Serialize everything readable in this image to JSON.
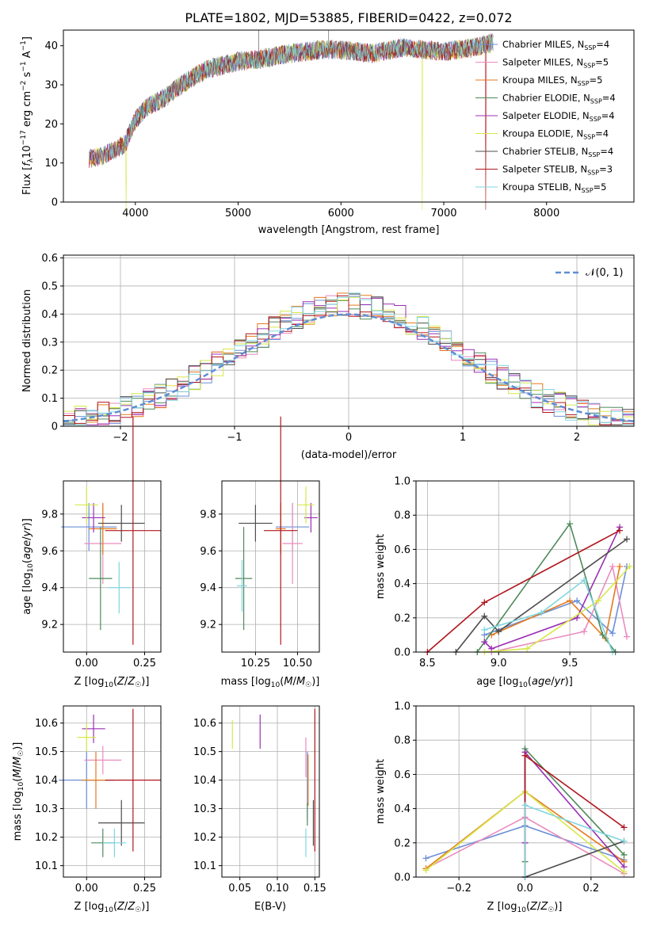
{
  "title": "PLATE=1802, MJD=53885, FIBERID=0422, z=0.072",
  "colors": [
    "#6b8fd8",
    "#e98cbf",
    "#e57a1e",
    "#4f8a5b",
    "#9b30b5",
    "#d7e84a",
    "#4d4d4d",
    "#b0171f",
    "#7fd6e0"
  ],
  "legend": [
    {
      "name": "Chabrier MILES",
      "n": "4"
    },
    {
      "name": "Salpeter MILES",
      "n": "5"
    },
    {
      "name": "Kroupa MILES",
      "n": "5"
    },
    {
      "name": "Chabrier ELODIE",
      "n": "4"
    },
    {
      "name": "Salpeter ELODIE",
      "n": "4"
    },
    {
      "name": "Kroupa ELODIE",
      "n": "4"
    },
    {
      "name": "Chabrier STELIB",
      "n": "4"
    },
    {
      "name": "Salpeter STELIB",
      "n": "3"
    },
    {
      "name": "Kroupa STELIB",
      "n": "5"
    }
  ],
  "chart_data": [
    {
      "type": "line",
      "xlabel": "wavelength [Angstrom, rest frame]",
      "ylabel": "Flux [f_λ 10^-17 erg cm^-2 s^-1 A^-1]",
      "xlim": [
        3300,
        8850
      ],
      "ylim": [
        0,
        44
      ],
      "xticks": [
        4000,
        5000,
        6000,
        7000,
        8000
      ],
      "yticks": [
        0,
        10,
        20,
        30,
        40
      ],
      "spectrum_shape": {
        "x": [
          3550,
          3700,
          3900,
          4000,
          4100,
          4300,
          4500,
          4700,
          5000,
          5200,
          5500,
          5800,
          6000,
          6300,
          6600,
          7000,
          7300,
          7500
        ],
        "y": [
          11,
          12,
          15,
          21,
          24,
          27,
          31,
          34,
          36,
          36.5,
          38,
          39,
          39,
          38,
          39.5,
          38.5,
          39.5,
          41
        ]
      },
      "grid": false
    },
    {
      "type": "histogram",
      "xlabel": "(data-model)/error",
      "ylabel": "Normed distribution",
      "xlim": [
        -2.5,
        2.5
      ],
      "ylim": [
        0,
        0.61
      ],
      "xticks": [
        -2,
        -1,
        0,
        1,
        2
      ],
      "yticks": [
        0,
        0.1,
        0.2,
        0.3,
        0.4,
        0.5,
        0.6
      ],
      "reference_label": "𝒩(0, 1)",
      "grid": true
    },
    {
      "type": "scatter",
      "xlabel": "Z [log10(Z/Z☉)]",
      "ylabel": "age [log10(age/yr)]",
      "xlim": [
        -0.1,
        0.32
      ],
      "ylim": [
        9.05,
        9.98
      ],
      "xticks": [
        0,
        0.25
      ],
      "xticklabels": [
        "0.00",
        "0.25"
      ],
      "yticks": [
        9.2,
        9.4,
        9.6,
        9.8
      ],
      "yticklabels": [
        "9.2",
        "9.4",
        "9.6",
        "9.8"
      ],
      "points": [
        {
          "x": 0.01,
          "y": 9.73,
          "xe": 0.12,
          "ye": 0.13
        },
        {
          "x": 0.07,
          "y": 9.64,
          "xe": 0.08,
          "ye": 0.22
        },
        {
          "x": 0.07,
          "y": 9.72,
          "xe": 0.06,
          "ye": 0.14
        },
        {
          "x": 0.06,
          "y": 9.45,
          "xe": 0.05,
          "ye": 0.28
        },
        {
          "x": 0.03,
          "y": 9.78,
          "xe": 0.05,
          "ye": 0.08
        },
        {
          "x": 0.0,
          "y": 9.85,
          "xe": 0.05,
          "ye": 0.1
        },
        {
          "x": 0.15,
          "y": 9.75,
          "xe": 0.1,
          "ye": 0.1
        },
        {
          "x": 0.2,
          "y": 9.71,
          "xe": 0.12,
          "ye": 0.62
        },
        {
          "x": 0.14,
          "y": 9.4,
          "xe": 0.05,
          "ye": 0.14
        }
      ]
    },
    {
      "type": "scatter",
      "xlabel": "mass [log10(M/M☉)]",
      "ylabel": "",
      "xlim": [
        10.05,
        10.63
      ],
      "ylim": [
        9.05,
        9.98
      ],
      "xticks": [
        10.25,
        10.5
      ],
      "xticklabels": [
        "10.25",
        "10.50"
      ],
      "yticks": [
        9.2,
        9.4,
        9.6,
        9.8
      ],
      "yticklabels": [
        "9.2",
        "9.4",
        "9.6",
        "9.8"
      ],
      "points": [
        {
          "x": 10.47,
          "y": 9.73,
          "xe": 0.1,
          "ye": 0.13
        },
        {
          "x": 10.47,
          "y": 9.64,
          "xe": 0.06,
          "ye": 0.22
        },
        {
          "x": 10.4,
          "y": 9.72,
          "xe": 0.03,
          "ye": 0.14
        },
        {
          "x": 10.18,
          "y": 9.45,
          "xe": 0.05,
          "ye": 0.28
        },
        {
          "x": 10.58,
          "y": 9.78,
          "xe": 0.04,
          "ye": 0.08
        },
        {
          "x": 10.55,
          "y": 9.85,
          "xe": 0.05,
          "ye": 0.1
        },
        {
          "x": 10.25,
          "y": 9.75,
          "xe": 0.1,
          "ye": 0.1
        },
        {
          "x": 10.4,
          "y": 9.71,
          "xe": 0.1,
          "ye": 0.62
        },
        {
          "x": 10.17,
          "y": 9.41,
          "xe": 0.03,
          "ye": 0.14
        }
      ]
    },
    {
      "type": "line",
      "xlabel": "age [log10(age/yr)]",
      "ylabel": "mass weight",
      "xlim": [
        8.42,
        9.95
      ],
      "ylim": [
        0,
        1
      ],
      "xticks": [
        8.5,
        9.0,
        9.5
      ],
      "xticklabels": [
        "8.5",
        "9.0",
        "9.5"
      ],
      "yticks": [
        0,
        0.2,
        0.4,
        0.6,
        0.8,
        1.0
      ],
      "yticklabels": [
        "0.0",
        "0.2",
        "0.4",
        "0.6",
        "0.8",
        "1.0"
      ],
      "grid": true,
      "series": [
        {
          "x": [
            8.9,
            9.55,
            9.8,
            9.9
          ],
          "y": [
            0.1,
            0.3,
            0.11,
            0.5
          ]
        },
        {
          "x": [
            8.95,
            9.6,
            9.8,
            9.9
          ],
          "y": [
            0.0,
            0.12,
            0.5,
            0.09
          ]
        },
        {
          "x": [
            8.95,
            9.5,
            9.75,
            9.85
          ],
          "y": [
            0.1,
            0.3,
            0.08,
            0.5
          ]
        },
        {
          "x": [
            8.85,
            9.5,
            9.73,
            9.82
          ],
          "y": [
            0.0,
            0.75,
            0.1,
            0.0
          ]
        },
        {
          "x": [
            8.9,
            8.95,
            9.55,
            9.85
          ],
          "y": [
            0.06,
            0.02,
            0.2,
            0.73
          ]
        },
        {
          "x": [
            8.9,
            9.2,
            9.7,
            9.92
          ],
          "y": [
            0.0,
            0.02,
            0.3,
            0.5
          ]
        },
        {
          "x": [
            8.7,
            8.9,
            9.0,
            9.9
          ],
          "y": [
            0.0,
            0.21,
            0.12,
            0.66
          ]
        },
        {
          "x": [
            8.5,
            8.9,
            9.85
          ],
          "y": [
            0.0,
            0.29,
            0.71
          ]
        },
        {
          "x": [
            8.9,
            9.3,
            9.6,
            9.8
          ],
          "y": [
            0.13,
            0.23,
            0.42,
            0.0
          ]
        }
      ]
    },
    {
      "type": "scatter",
      "xlabel": "Z [log10(Z/Z☉)]",
      "ylabel": "mass [log10(M/M☉)]",
      "xlim": [
        -0.1,
        0.32
      ],
      "ylim": [
        10.06,
        10.66
      ],
      "xticks": [
        0,
        0.25
      ],
      "xticklabels": [
        "0.00",
        "0.25"
      ],
      "yticks": [
        10.1,
        10.2,
        10.3,
        10.4,
        10.5,
        10.6
      ],
      "yticklabels": [
        "10.1",
        "10.2",
        "10.3",
        "10.4",
        "10.5",
        "10.6"
      ],
      "points": [
        {
          "x": 0.0,
          "y": 10.4,
          "xe": 0.12,
          "ye": 0.1
        },
        {
          "x": 0.07,
          "y": 10.47,
          "xe": 0.08,
          "ye": 0.05
        },
        {
          "x": 0.04,
          "y": 10.4,
          "xe": 0.06,
          "ye": 0.1
        },
        {
          "x": 0.07,
          "y": 10.18,
          "xe": 0.05,
          "ye": 0.05
        },
        {
          "x": 0.03,
          "y": 10.58,
          "xe": 0.05,
          "ye": 0.05
        },
        {
          "x": 0.0,
          "y": 10.55,
          "xe": 0.04,
          "ye": 0.05
        },
        {
          "x": 0.15,
          "y": 10.25,
          "xe": 0.1,
          "ye": 0.08
        },
        {
          "x": 0.2,
          "y": 10.4,
          "xe": 0.12,
          "ye": 0.25
        },
        {
          "x": 0.12,
          "y": 10.18,
          "xe": 0.05,
          "ye": 0.05
        }
      ]
    },
    {
      "type": "scatter",
      "xlabel": "E(B-V)",
      "ylabel": "",
      "xlim": [
        0.026,
        0.156
      ],
      "ylim": [
        10.06,
        10.66
      ],
      "xticks": [
        0.05,
        0.1,
        0.15
      ],
      "xticklabels": [
        "0.05",
        "0.10",
        "0.15"
      ],
      "yticks": [
        10.1,
        10.2,
        10.3,
        10.4,
        10.5,
        10.6
      ],
      "yticklabels": [
        "10.1",
        "10.2",
        "10.3",
        "10.4",
        "10.5",
        "10.6"
      ],
      "points": [
        {
          "x": 0.14,
          "y": 10.38,
          "xe": 0,
          "ye": 0.12
        },
        {
          "x": 0.138,
          "y": 10.48,
          "xe": 0,
          "ye": 0.07
        },
        {
          "x": 0.141,
          "y": 10.4,
          "xe": 0,
          "ye": 0.09
        },
        {
          "x": 0.14,
          "y": 10.28,
          "xe": 0,
          "ye": 0.04
        },
        {
          "x": 0.077,
          "y": 10.57,
          "xe": 0,
          "ye": 0.06
        },
        {
          "x": 0.04,
          "y": 10.56,
          "xe": 0,
          "ye": 0.05
        },
        {
          "x": 0.148,
          "y": 10.25,
          "xe": 0,
          "ye": 0.08
        },
        {
          "x": 0.15,
          "y": 10.4,
          "xe": 0,
          "ye": 0.25
        },
        {
          "x": 0.138,
          "y": 10.18,
          "xe": 0,
          "ye": 0.05
        }
      ]
    },
    {
      "type": "line",
      "xlabel": "Z [log10(Z/Z☉)]",
      "ylabel": "mass weight",
      "xlim": [
        -0.33,
        0.33
      ],
      "ylim": [
        0,
        1
      ],
      "xticks": [
        -0.2,
        0,
        0.2
      ],
      "xticklabels": [
        "−0.2",
        "0.0",
        "0.2"
      ],
      "yticks": [
        0,
        0.2,
        0.4,
        0.6,
        0.8,
        1.0
      ],
      "yticklabels": [
        "0.0",
        "0.2",
        "0.4",
        "0.6",
        "0.8",
        "1.0"
      ],
      "grid": true,
      "series": [
        {
          "x": [
            -0.3,
            0,
            0.3
          ],
          "y": [
            0.11,
            0.3,
            0.1
          ]
        },
        {
          "x": [
            -0.3,
            0,
            0.3
          ],
          "y": [
            0.05,
            0.35,
            0.02
          ]
        },
        {
          "x": [
            -0.3,
            0,
            0.3
          ],
          "y": [
            0.05,
            0.5,
            0.09
          ]
        },
        {
          "x": [
            0,
            0,
            0.3
          ],
          "y": [
            0.09,
            0.75,
            0.13
          ]
        },
        {
          "x": [
            0,
            0,
            0.3
          ],
          "y": [
            0.2,
            0.73,
            0.06
          ]
        },
        {
          "x": [
            -0.3,
            0,
            0.3
          ],
          "y": [
            0.04,
            0.5,
            0.03
          ]
        },
        {
          "x": [
            0,
            0.3
          ],
          "y": [
            0.0,
            0.21
          ]
        },
        {
          "x": [
            0,
            0,
            0.3
          ],
          "y": [
            0.0,
            0.71,
            0.29
          ]
        },
        {
          "x": [
            0,
            0,
            0.3
          ],
          "y": [
            0.0,
            0.42,
            0.21
          ]
        }
      ]
    }
  ]
}
